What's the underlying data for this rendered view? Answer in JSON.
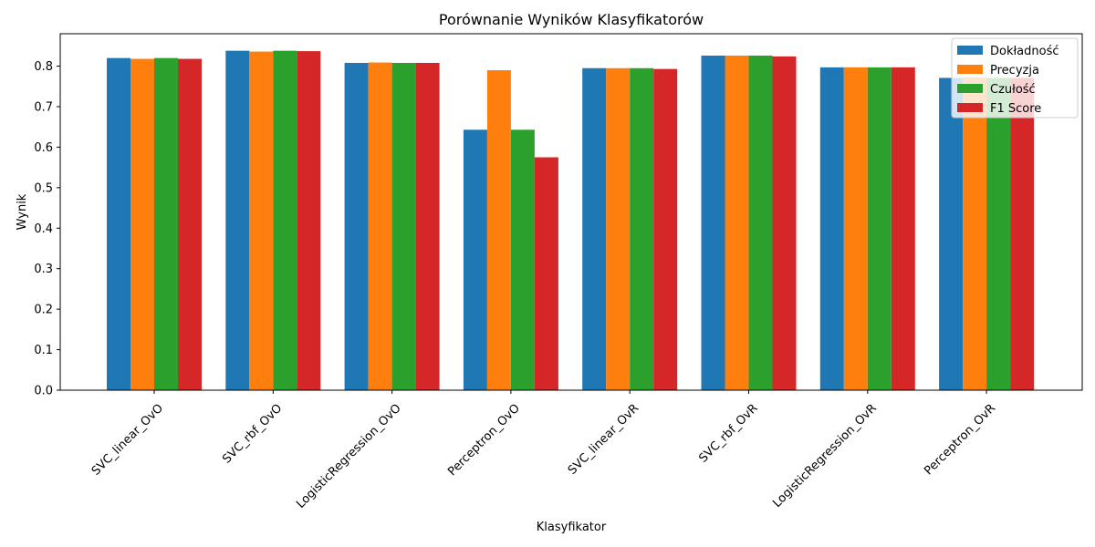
{
  "chart_data": {
    "type": "bar",
    "title": "Porównanie Wyników Klasyfikatorów",
    "xlabel": "Klasyfikator",
    "ylabel": "Wynik",
    "ylim": [
      0,
      0.88
    ],
    "yticks": [
      "0.0",
      "0.1",
      "0.2",
      "0.3",
      "0.4",
      "0.5",
      "0.6",
      "0.7",
      "0.8"
    ],
    "grid": false,
    "legend_position": "top-right",
    "categories": [
      "SVC_linear_OvO",
      "SVC_rbf_OvO",
      "LogisticRegression_OvO",
      "Perceptron_OvO",
      "SVC_linear_OvR",
      "SVC_rbf_OvR",
      "LogisticRegression_OvR",
      "Perceptron_OvR"
    ],
    "series": [
      {
        "name": "Dokładność",
        "color": "#1f77b4",
        "values": [
          0.82,
          0.838,
          0.808,
          0.643,
          0.795,
          0.826,
          0.797,
          0.771
        ]
      },
      {
        "name": "Precyzja",
        "color": "#ff7f0e",
        "values": [
          0.818,
          0.836,
          0.809,
          0.79,
          0.795,
          0.826,
          0.797,
          0.772
        ]
      },
      {
        "name": "Czułość",
        "color": "#2ca02c",
        "values": [
          0.82,
          0.838,
          0.808,
          0.643,
          0.795,
          0.826,
          0.797,
          0.771
        ]
      },
      {
        "name": "F1 Score",
        "color": "#d62728",
        "values": [
          0.818,
          0.837,
          0.808,
          0.575,
          0.793,
          0.824,
          0.797,
          0.771
        ]
      }
    ]
  }
}
